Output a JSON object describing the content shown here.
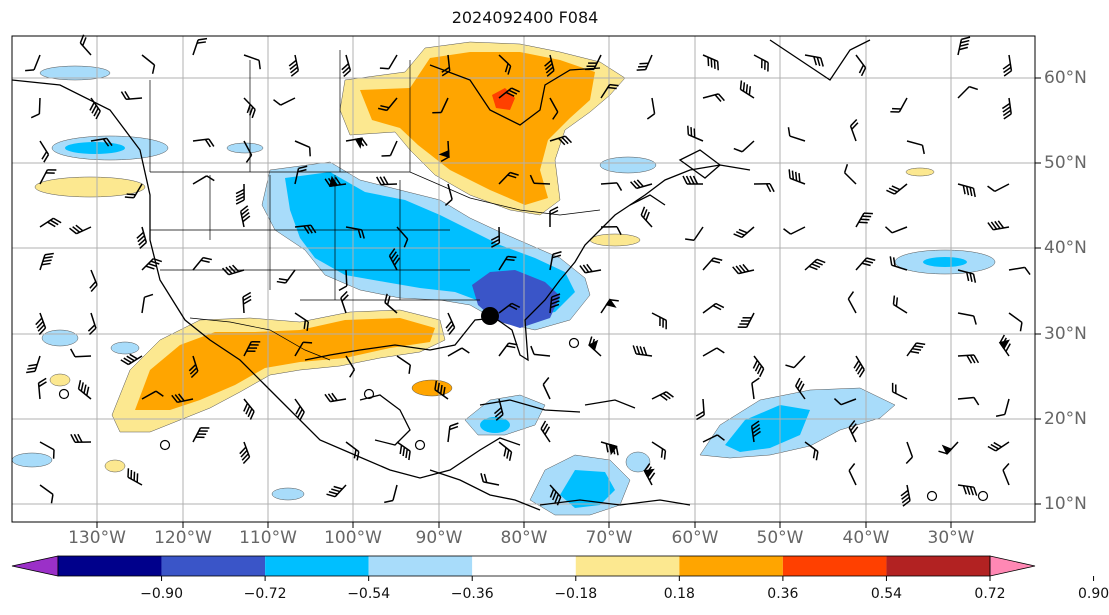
{
  "title": "2024092400 F084",
  "map": {
    "lon_labels": [
      "130°W",
      "120°W",
      "110°W",
      "100°W",
      "90°W",
      "80°W",
      "70°W",
      "60°W",
      "50°W",
      "40°W",
      "30°W"
    ],
    "lat_labels": [
      "60°N",
      "50°N",
      "40°N",
      "30°N",
      "20°N",
      "10°N"
    ]
  },
  "colorbar": {
    "ticks": [
      "−0.90",
      "−0.72",
      "−0.54",
      "−0.36",
      "−0.18",
      "0.18",
      "0.36",
      "0.54",
      "0.72",
      "0.90"
    ],
    "colors": [
      "#9b30c8",
      "#00008b",
      "#3a55c8",
      "#00bfff",
      "#a8dcfa",
      "#ffffff",
      "#fce890",
      "#ffa500",
      "#ff4000",
      "#b22222",
      "#ff88b4"
    ]
  },
  "markers": {
    "storm_center": "filled-circle"
  }
}
